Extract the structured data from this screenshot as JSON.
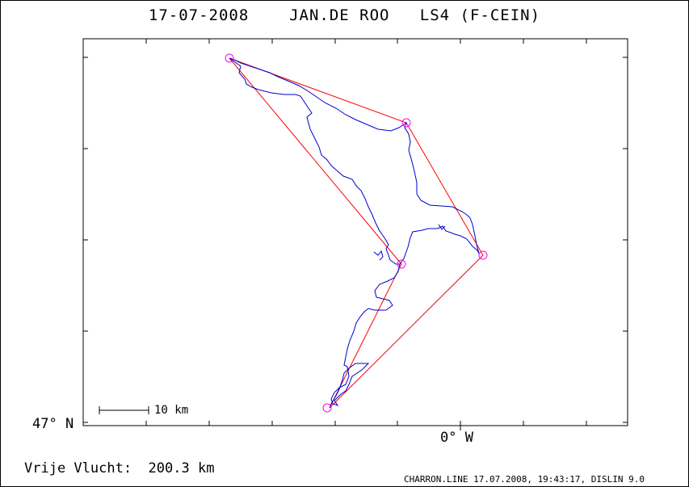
{
  "title": {
    "date": "17-07-2008",
    "pilot": "JAN.DE ROO",
    "glider": "LS4 (F-CEIN)"
  },
  "axes": {
    "latitude_label": "47° N",
    "longitude_label": "0° W"
  },
  "scale_bar": {
    "label": "10 km"
  },
  "summary": {
    "label": "Vrije Vlucht:",
    "value": "200.3 km"
  },
  "footer": "CHARRON.LINE 17.07.2008, 19:43:17, DISLIN 9.0",
  "colors": {
    "track": "#0000cc",
    "task": "#ff0000",
    "turnpoint": "#ff00ff",
    "frame": "#000000"
  }
}
